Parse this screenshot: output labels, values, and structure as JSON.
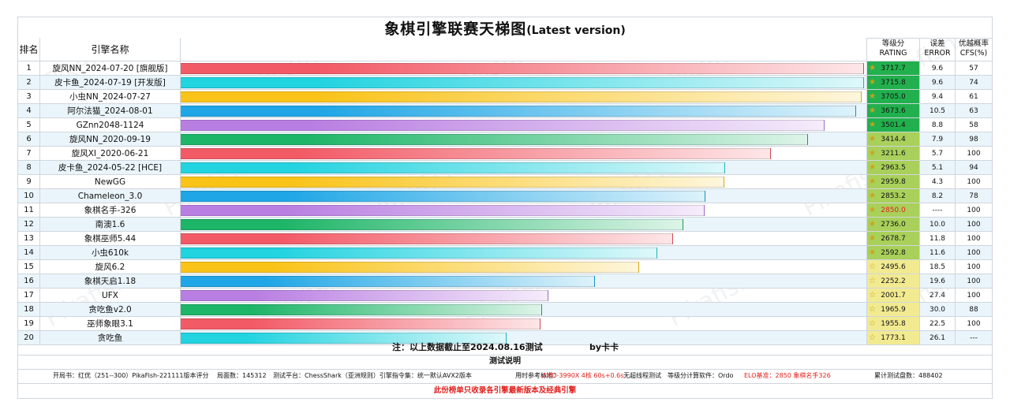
{
  "title": "象棋引擎联赛天梯图",
  "title_sub": "(Latest version)",
  "headers": {
    "rank": "排名",
    "name": "引擎名称",
    "rating_1": "等级分",
    "rating_2": "RATING",
    "error_1": "误差",
    "error_2": "ERROR",
    "cfs_1": "优越概率",
    "cfs_2": "CFS(%)"
  },
  "colors": {
    "bar_palette": [
      "#f25a66",
      "#22d3e0",
      "#f9c318",
      "#1fa6e6",
      "#b97ee2",
      "#1db567"
    ],
    "rating_top": "#22b04e",
    "rating_mid": "#a9d05a",
    "rating_low": "#f2ea91",
    "rating_ref": "#e0201c"
  },
  "chart_data": {
    "type": "bar",
    "orientation": "horizontal",
    "xlim": [
      0,
      3717.7
    ],
    "rows": [
      {
        "rank": "1",
        "name": "旋风NN_2024-07-20 [旗舰版]",
        "rating": 3717.7,
        "rating_label": "3717.7",
        "error": "9.6",
        "cfs": "57"
      },
      {
        "rank": "2",
        "name": "皮卡鱼_2024-07-19 [开发版]",
        "rating": 3715.8,
        "rating_label": "3715.8",
        "error": "9.6",
        "cfs": "74"
      },
      {
        "rank": "3",
        "name": "小虫NN_2024-07-27",
        "rating": 3705.0,
        "rating_label": "3705.0",
        "error": "9.4",
        "cfs": "61"
      },
      {
        "rank": "4",
        "name": "阿尔法猫_2024-08-01",
        "rating": 3673.6,
        "rating_label": "3673.6",
        "error": "10.5",
        "cfs": "63"
      },
      {
        "rank": "5",
        "name": "GZnn2048-1124",
        "rating": 3501.4,
        "rating_label": "3501.4",
        "error": "8.8",
        "cfs": "58"
      },
      {
        "rank": "6",
        "name": "旋风NN_2020-09-19",
        "rating": 3414.4,
        "rating_label": "3414.4",
        "error": "7.9",
        "cfs": "98"
      },
      {
        "rank": "7",
        "name": "旋风XI_2020-06-21",
        "rating": 3211.6,
        "rating_label": "3211.6",
        "error": "5.7",
        "cfs": "100"
      },
      {
        "rank": "8",
        "name": "皮卡鱼_2024-05-22 [HCE]",
        "rating": 2963.5,
        "rating_label": "2963.5",
        "error": "5.1",
        "cfs": "94"
      },
      {
        "rank": "9",
        "name": "NewGG",
        "rating": 2959.8,
        "rating_label": "2959.8",
        "error": "4.3",
        "cfs": "100"
      },
      {
        "rank": "10",
        "name": "Chameleon_3.0",
        "rating": 2853.2,
        "rating_label": "2853.2",
        "error": "8.2",
        "cfs": "78"
      },
      {
        "rank": "11",
        "name": "象棋名手-326",
        "rating": 2850.0,
        "rating_label": "2850.0",
        "error": "----",
        "cfs": "100",
        "reference": true
      },
      {
        "rank": "12",
        "name": "南澳1.6",
        "rating": 2736.0,
        "rating_label": "2736.0",
        "error": "10.0",
        "cfs": "100"
      },
      {
        "rank": "13",
        "name": "象棋巫师5.44",
        "rating": 2678.7,
        "rating_label": "2678.7",
        "error": "11.8",
        "cfs": "100"
      },
      {
        "rank": "14",
        "name": "小虫610k",
        "rating": 2592.8,
        "rating_label": "2592.8",
        "error": "11.6",
        "cfs": "100"
      },
      {
        "rank": "15",
        "name": "旋风6.2",
        "rating": 2495.6,
        "rating_label": "2495.6",
        "error": "18.5",
        "cfs": "100"
      },
      {
        "rank": "16",
        "name": "象棋天启1.18",
        "rating": 2252.2,
        "rating_label": "2252.2",
        "error": "19.6",
        "cfs": "100"
      },
      {
        "rank": "17",
        "name": "UFX",
        "rating": 2001.7,
        "rating_label": "2001.7",
        "error": "27.4",
        "cfs": "100"
      },
      {
        "rank": "18",
        "name": "贪吃鱼v2.0",
        "rating": 1965.9,
        "rating_label": "1965.9",
        "error": "30.0",
        "cfs": "88"
      },
      {
        "rank": "19",
        "name": "巫师象眼3.1",
        "rating": 1955.8,
        "rating_label": "1955.8",
        "error": "22.5",
        "cfs": "100"
      },
      {
        "rank": "20",
        "name": "贪吃鱼",
        "rating": 1773.1,
        "rating_label": "1773.1",
        "error": "26.1",
        "cfs": "---"
      }
    ]
  },
  "footer": {
    "note": "注：以上数据截止至2024.08.16测试",
    "by": "by卡卡",
    "section": "测试说明",
    "opening": "开局书：红优（251--300）PikaFish-221111版本评分",
    "games": "局面数：145312",
    "platform": "测试平台：ChessShark（亚洲规则）引擎指令集：统一默认AVX2版本",
    "time_label": "用时参考标准：",
    "time_value": "AMD-3990X 4核 60s+0.6s",
    "time_extra": "无超线程测试",
    "rating_soft": "等级分计算软件：Ordo",
    "elo_ref": "ELO基准：2850 象棋名手326",
    "total": "累计测试盘数：488402",
    "bottom": "此份榜单只收录各引擎最新版本及经典引擎"
  },
  "watermark": "Pikafish"
}
